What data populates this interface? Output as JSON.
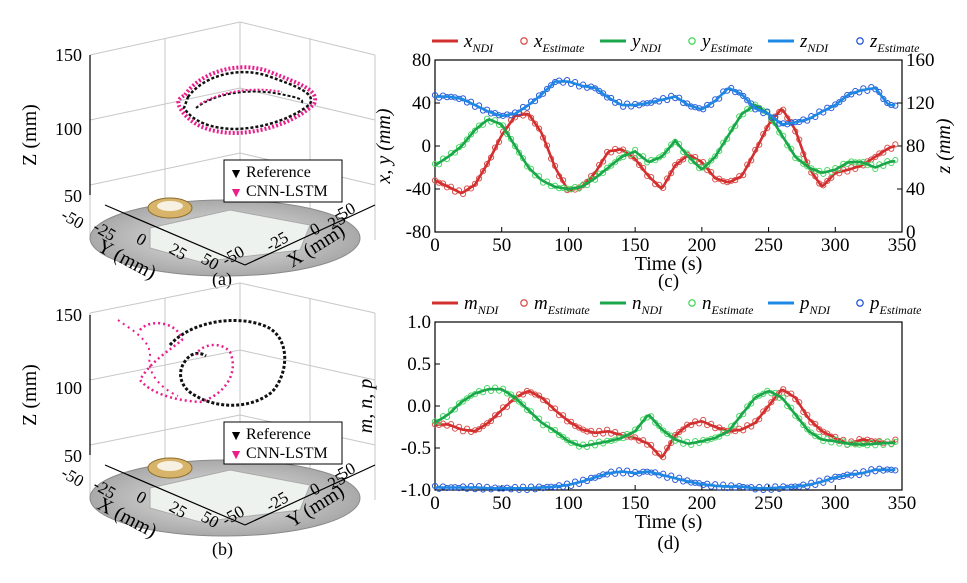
{
  "colors": {
    "red": "#d32f2f",
    "green": "#1aa64a",
    "blue": "#1e88e5",
    "red_marker": "#d9534f",
    "green_marker": "#4cd964",
    "blue_marker": "#2a5bd7",
    "pink": "#e91e8c",
    "black": "#111111"
  },
  "panel_a": {
    "label": "(a)",
    "z_axis_label": "Z (mm)",
    "y_axis_label": "Y (mm)",
    "x_axis_label": "X (mm)",
    "z_ticks": [
      "150",
      "100",
      "50"
    ],
    "y_ticks": [
      "-50",
      "-25",
      "0",
      "25",
      "50"
    ],
    "x_ticks": [
      "-50",
      "-25",
      "0",
      "25",
      "50"
    ],
    "legend": [
      "Reference",
      "CNN-LSTM"
    ]
  },
  "panel_b": {
    "label": "(b)",
    "z_axis_label": "Z (mm)",
    "y_axis_label": "X (mm)",
    "x_axis_label": "Y (mm)",
    "z_ticks": [
      "150",
      "100",
      "50"
    ],
    "y_ticks": [
      "-50",
      "-25",
      "0",
      "25",
      "50"
    ],
    "x_ticks": [
      "-50",
      "-25",
      "0",
      "25",
      "50"
    ],
    "legend": [
      "Reference",
      "CNN-LSTM"
    ]
  },
  "chart_data": [
    {
      "type": "line",
      "panel": "(c)",
      "xlabel": "Time (s)",
      "ylabel_left": "x, y (mm)",
      "ylabel_right": "z (mm)",
      "xlim": [
        0,
        350
      ],
      "ylim_left": [
        -80,
        80
      ],
      "ylim_right": [
        0,
        160
      ],
      "x_ticks": [
        0,
        50,
        100,
        150,
        200,
        250,
        300,
        350
      ],
      "y_ticks_left": [
        -80,
        -40,
        0,
        40,
        80
      ],
      "y_ticks_right": [
        0,
        40,
        80,
        120,
        160
      ],
      "legend": [
        {
          "base": "x",
          "sub": "NDI",
          "style": "line",
          "color": "red"
        },
        {
          "base": "x",
          "sub": "Estimate",
          "style": "marker",
          "color": "red"
        },
        {
          "base": "y",
          "sub": "NDI",
          "style": "line",
          "color": "green"
        },
        {
          "base": "y",
          "sub": "Estimate",
          "style": "marker",
          "color": "green"
        },
        {
          "base": "z",
          "sub": "NDI",
          "style": "line",
          "color": "blue"
        },
        {
          "base": "z",
          "sub": "Estimate",
          "style": "marker",
          "color": "blue"
        }
      ],
      "time": [
        0,
        10,
        20,
        30,
        40,
        50,
        60,
        70,
        80,
        90,
        100,
        110,
        120,
        130,
        140,
        150,
        160,
        170,
        180,
        190,
        200,
        210,
        220,
        230,
        240,
        250,
        260,
        270,
        280,
        290,
        300,
        310,
        320,
        330,
        340,
        345
      ],
      "series": [
        {
          "name": "x",
          "axis": "left",
          "color": "red",
          "values": [
            -32,
            -38,
            -44,
            -36,
            -15,
            10,
            28,
            30,
            12,
            -20,
            -42,
            -38,
            -25,
            -5,
            -3,
            -12,
            -28,
            -40,
            -18,
            -8,
            -15,
            -30,
            -34,
            -28,
            -5,
            20,
            35,
            15,
            -20,
            -38,
            -25,
            -22,
            -18,
            -10,
            -2,
            0
          ]
        },
        {
          "name": "y",
          "axis": "left",
          "color": "green",
          "values": [
            -18,
            -10,
            0,
            15,
            25,
            20,
            0,
            -20,
            -32,
            -38,
            -40,
            -38,
            -30,
            -20,
            -10,
            -5,
            -15,
            -10,
            5,
            -10,
            -22,
            -10,
            10,
            30,
            38,
            30,
            10,
            -10,
            -20,
            -25,
            -22,
            -15,
            -15,
            -20,
            -15,
            -14
          ]
        },
        {
          "name": "z",
          "axis": "right",
          "color": "blue",
          "values": [
            126,
            126,
            124,
            118,
            112,
            108,
            110,
            118,
            128,
            140,
            140,
            136,
            134,
            125,
            118,
            118,
            120,
            123,
            126,
            118,
            114,
            122,
            134,
            128,
            115,
            110,
            100,
            102,
            105,
            112,
            118,
            128,
            132,
            134,
            118,
            118
          ]
        }
      ]
    },
    {
      "type": "line",
      "panel": "(d)",
      "xlabel": "Time (s)",
      "ylabel": "m, n, p",
      "xlim": [
        0,
        350
      ],
      "ylim": [
        -1.0,
        1.0
      ],
      "x_ticks": [
        0,
        50,
        100,
        150,
        200,
        250,
        300,
        350
      ],
      "y_ticks": [
        "1.0",
        "0.5",
        "0.0",
        "-0.5",
        "-1.0"
      ],
      "legend": [
        {
          "base": "m",
          "sub": "NDI",
          "style": "line",
          "color": "red"
        },
        {
          "base": "m",
          "sub": "Estimate",
          "style": "marker",
          "color": "red"
        },
        {
          "base": "n",
          "sub": "NDI",
          "style": "line",
          "color": "green"
        },
        {
          "base": "n",
          "sub": "Estimate",
          "style": "marker",
          "color": "green"
        },
        {
          "base": "p",
          "sub": "NDI",
          "style": "line",
          "color": "blue"
        },
        {
          "base": "p",
          "sub": "Estimate",
          "style": "marker",
          "color": "blue"
        }
      ],
      "time": [
        0,
        10,
        20,
        30,
        40,
        50,
        60,
        70,
        80,
        90,
        100,
        110,
        120,
        130,
        140,
        150,
        160,
        170,
        180,
        190,
        200,
        210,
        220,
        230,
        240,
        250,
        260,
        270,
        280,
        290,
        300,
        310,
        320,
        330,
        340,
        345
      ],
      "series": [
        {
          "name": "m",
          "color": "red",
          "values": [
            -0.22,
            -0.22,
            -0.28,
            -0.3,
            -0.2,
            -0.05,
            0.1,
            0.18,
            0.1,
            -0.05,
            -0.18,
            -0.28,
            -0.32,
            -0.3,
            -0.35,
            -0.38,
            -0.45,
            -0.62,
            -0.35,
            -0.22,
            -0.18,
            -0.25,
            -0.3,
            -0.28,
            -0.2,
            0.0,
            0.2,
            0.1,
            -0.15,
            -0.3,
            -0.38,
            -0.45,
            -0.4,
            -0.42,
            -0.44,
            -0.42
          ]
        },
        {
          "name": "n",
          "color": "green",
          "values": [
            -0.2,
            -0.1,
            0.05,
            0.15,
            0.2,
            0.2,
            0.1,
            -0.05,
            -0.2,
            -0.3,
            -0.42,
            -0.48,
            -0.45,
            -0.42,
            -0.38,
            -0.3,
            -0.1,
            -0.28,
            -0.4,
            -0.45,
            -0.42,
            -0.38,
            -0.3,
            -0.1,
            0.1,
            0.18,
            0.1,
            -0.1,
            -0.3,
            -0.4,
            -0.42,
            -0.45,
            -0.46,
            -0.45,
            -0.44,
            -0.44
          ]
        },
        {
          "name": "p",
          "color": "blue",
          "values": [
            -0.97,
            -0.97,
            -0.97,
            -0.97,
            -0.98,
            -0.98,
            -0.98,
            -0.98,
            -0.97,
            -0.96,
            -0.94,
            -0.9,
            -0.85,
            -0.8,
            -0.78,
            -0.8,
            -0.78,
            -0.82,
            -0.86,
            -0.9,
            -0.93,
            -0.95,
            -0.96,
            -0.96,
            -0.98,
            -0.98,
            -0.97,
            -0.96,
            -0.94,
            -0.9,
            -0.85,
            -0.82,
            -0.8,
            -0.76,
            -0.76,
            -0.76
          ]
        }
      ]
    }
  ]
}
